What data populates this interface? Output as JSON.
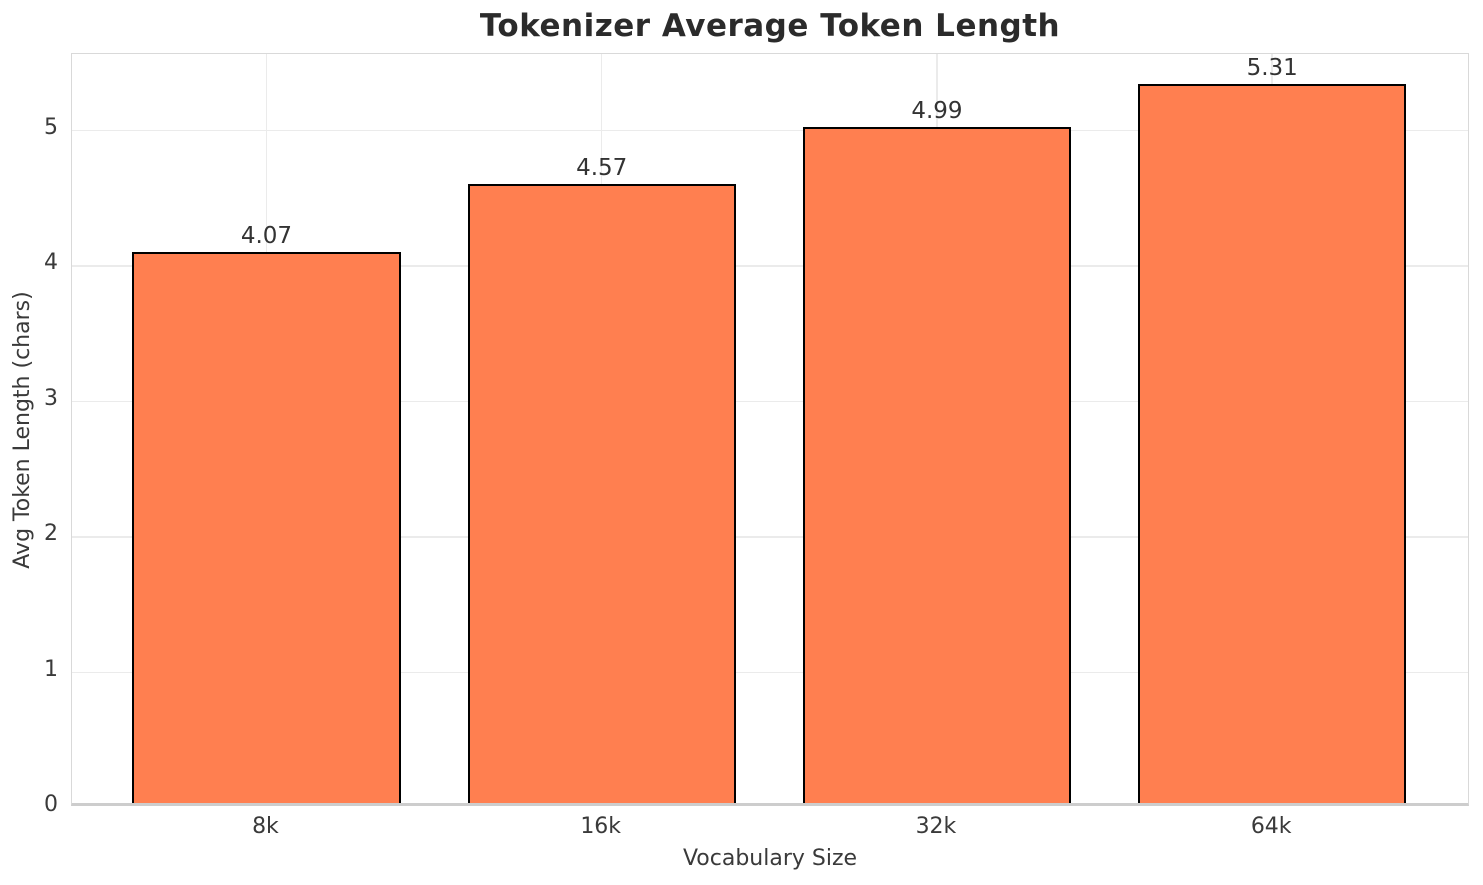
{
  "chart_data": {
    "type": "bar",
    "title": "Tokenizer Average Token Length",
    "xlabel": "Vocabulary Size",
    "ylabel": "Avg Token Length (chars)",
    "categories": [
      "8k",
      "16k",
      "32k",
      "64k"
    ],
    "values": [
      4.07,
      4.57,
      4.99,
      5.31
    ],
    "bar_labels": [
      "4.07",
      "4.57",
      "4.99",
      "5.31"
    ],
    "yticks": [
      0,
      1,
      2,
      3,
      4,
      5
    ],
    "ylim": [
      0,
      5.56
    ],
    "xlim": [
      -0.58,
      3.59
    ],
    "bar_width": 0.8,
    "grid": true,
    "legend": "none",
    "colors": {
      "bar_fill": "#ff7f50",
      "bar_edge": "#000000",
      "grid": "#ebebeb",
      "spine": "#d9d9d9",
      "title_text": "#2b2b2b",
      "tick_text": "#3a3a3a"
    }
  }
}
